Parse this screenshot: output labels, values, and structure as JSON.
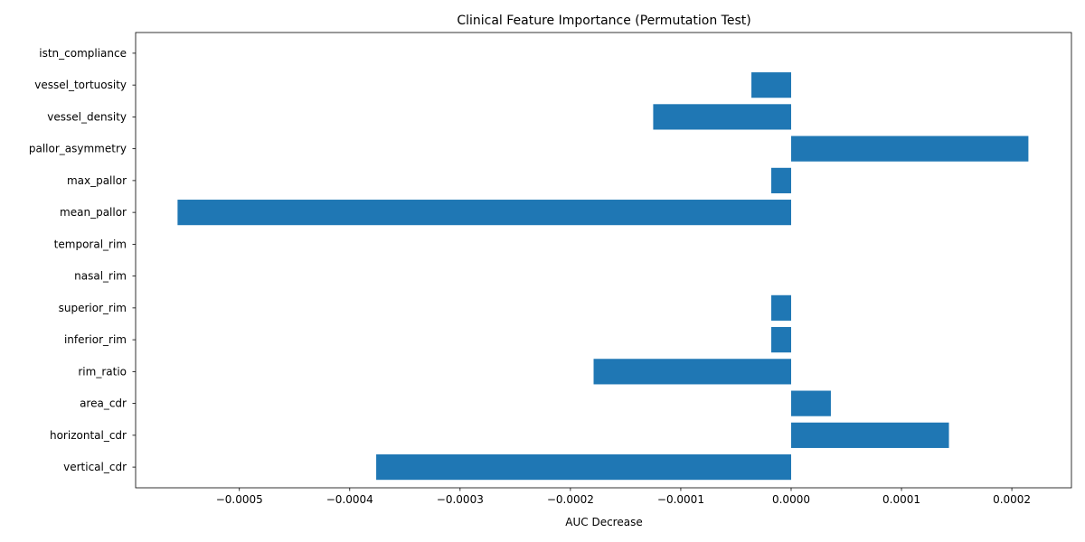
{
  "chart_data": {
    "type": "bar",
    "orientation": "horizontal",
    "title": "Clinical Feature Importance (Permutation Test)",
    "xlabel": "AUC Decrease",
    "ylabel": "",
    "xlim": [
      -0.000594,
      0.000254
    ],
    "grid": false,
    "categories": [
      "vertical_cdr",
      "horizontal_cdr",
      "area_cdr",
      "rim_ratio",
      "inferior_rim",
      "superior_rim",
      "nasal_rim",
      "temporal_rim",
      "mean_pallor",
      "max_pallor",
      "pallor_asymmetry",
      "vessel_density",
      "vessel_tortuosity",
      "istn_compliance"
    ],
    "values": [
      -0.000376,
      0.000143,
      3.6e-05,
      -0.000179,
      -1.8e-05,
      -1.8e-05,
      0,
      0,
      -0.000556,
      -1.8e-05,
      0.000215,
      -0.000125,
      -3.6e-05,
      0
    ],
    "xticks": [
      -0.0005,
      -0.0004,
      -0.0003,
      -0.0002,
      -0.0001,
      0.0,
      0.0001,
      0.0002
    ],
    "xtick_labels": [
      "−0.0005",
      "−0.0004",
      "−0.0003",
      "−0.0002",
      "−0.0001",
      "0.0000",
      "0.0001",
      "0.0002"
    ],
    "bar_color": "#1f77b4"
  }
}
